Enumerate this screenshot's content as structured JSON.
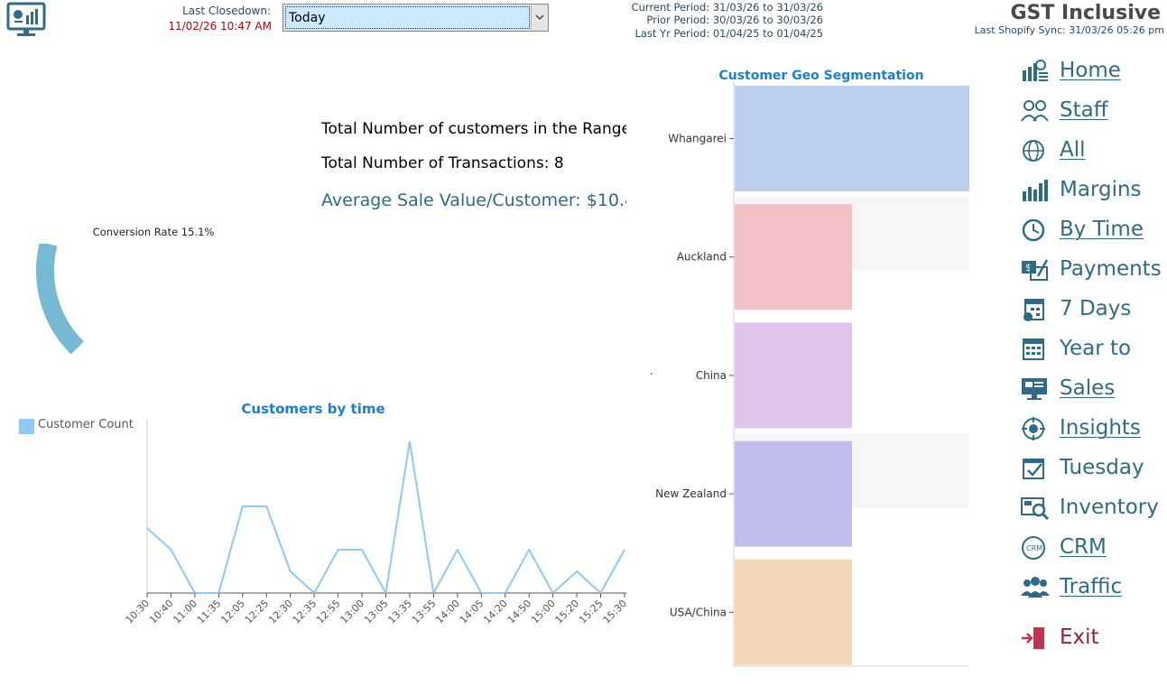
{
  "header": {
    "last_closedown_label": "Last Closedown:",
    "last_closedown_value": "11/02/26 10:47 AM",
    "period_selected": "Today",
    "current_period": "Current Period: 31/03/26 to 31/03/26",
    "prior_period": "Prior Period: 30/03/26 to 30/03/26",
    "last_yr_period": "Last Yr Period: 01/04/25 to 01/04/25",
    "gst_title": "GST Inclusive",
    "last_sync": "Last Shopify Sync: 31/03/26 05:26 pm"
  },
  "stats": {
    "total_customers": "Total Number of customers in the Range",
    "total_transactions": "Total Number of Transactions:  8",
    "average_sale": "Average Sale Value/Customer:  $10.4"
  },
  "conversion": {
    "label": "Conversion Rate 15.1%",
    "rate": 0.151
  },
  "chart_data": [
    {
      "type": "line",
      "title": "Customers by time",
      "legend": "top-left",
      "categories": [
        "10:30",
        "10:40",
        "11:00",
        "11:35",
        "12:05",
        "12:25",
        "12:30",
        "12:35",
        "12:55",
        "13:00",
        "13:05",
        "13:35",
        "13:55",
        "14:00",
        "14:05",
        "14:20",
        "14:50",
        "15:00",
        "15:20",
        "15:25",
        "15:30"
      ],
      "series": [
        {
          "name": "Customer Count",
          "color": "#8ec8f5",
          "values": [
            3,
            2,
            0,
            0,
            4,
            4,
            1,
            0,
            2,
            2,
            0,
            7,
            0,
            2,
            0,
            0,
            2,
            0,
            1,
            0,
            2
          ]
        }
      ]
    },
    {
      "type": "bar",
      "orientation": "horizontal",
      "title": "Customer Geo Segmentation",
      "categories": [
        "Whangarei",
        "Auckland",
        "China",
        "New Zealand",
        "USA/China"
      ],
      "values": [
        2,
        1,
        1,
        1,
        1
      ],
      "xlim": [
        0,
        2
      ],
      "colors": [
        "#bccff0",
        "#f2c0c6",
        "#dfc4ec",
        "#c0bcec",
        "#f5d7bc"
      ],
      "stray_mark": "."
    }
  ],
  "nav": [
    {
      "label": "Home",
      "icon": "home-icon"
    },
    {
      "label": "Staff",
      "icon": "staff-icon"
    },
    {
      "label": "All",
      "icon": "globe-icon"
    },
    {
      "label": "Margins",
      "icon": "margins-icon"
    },
    {
      "label": "By Time",
      "icon": "clock-icon"
    },
    {
      "label": "Payments",
      "icon": "payments-icon"
    },
    {
      "label": "7 Days",
      "icon": "seven-days-icon"
    },
    {
      "label": "Year to",
      "icon": "calendar-icon"
    },
    {
      "label": "Sales",
      "icon": "sales-icon"
    },
    {
      "label": "Insights",
      "icon": "insights-icon"
    },
    {
      "label": "Tuesday",
      "icon": "tuesday-icon"
    },
    {
      "label": "Inventory",
      "icon": "inventory-icon"
    },
    {
      "label": "CRM",
      "icon": "crm-icon"
    },
    {
      "label": "Traffic",
      "icon": "traffic-icon"
    },
    {
      "label": "Exit",
      "icon": "exit-icon"
    }
  ]
}
